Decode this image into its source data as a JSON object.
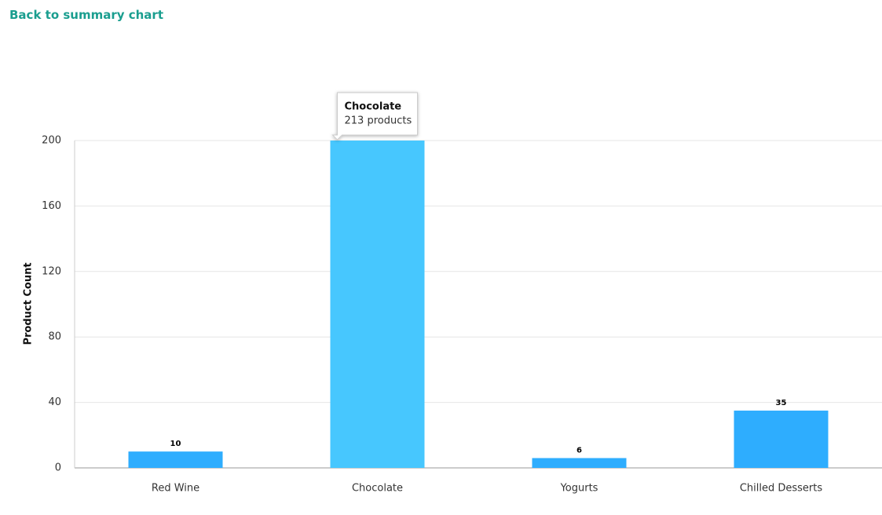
{
  "link": "Back to summary chart",
  "chart_data": {
    "type": "bar",
    "y_label": "Product Count",
    "categories": [
      "Red Wine",
      "Chocolate",
      "Yogurts",
      "Chilled Desserts"
    ],
    "values": [
      10,
      213,
      6,
      35
    ],
    "colors": [
      "#2eadfe",
      "#47c7fe",
      "#2eadfe",
      "#2eadfe"
    ],
    "ylim": [
      0,
      200
    ],
    "yticks": [
      0,
      40,
      80,
      120,
      160,
      200
    ],
    "grid": true,
    "tooltip": {
      "title": "Chocolate",
      "label": "213 products"
    }
  }
}
